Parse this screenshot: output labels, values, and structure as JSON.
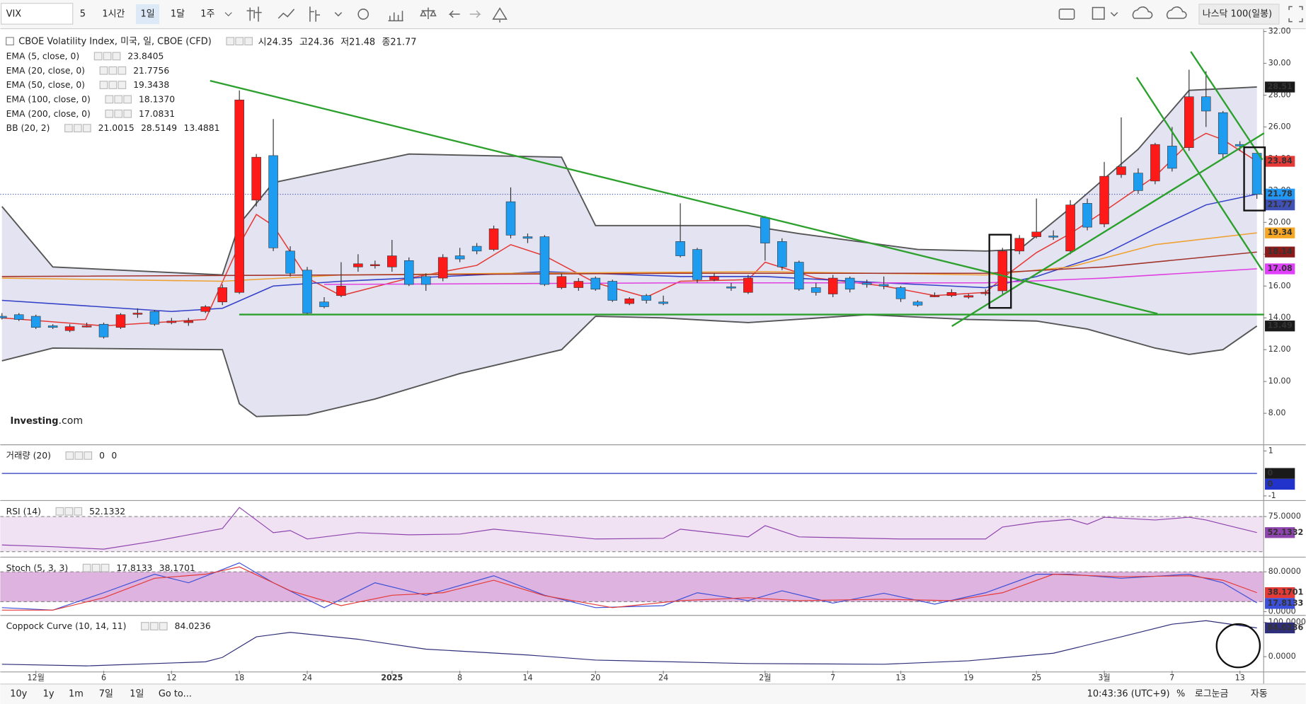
{
  "toolbar": {
    "symbol": "VIX",
    "intervals": [
      "5",
      "1시간",
      "1일",
      "1달",
      "1주"
    ],
    "selected_interval": 2,
    "index": "나스닥 100(일봉)"
  },
  "bottom_bar": {
    "ranges": [
      "10y",
      "1y",
      "1m",
      "7일",
      "1일",
      "Go to..."
    ],
    "time": "10:43:36 (UTC+9)",
    "options": [
      "%",
      "로그눈금",
      "자동"
    ]
  },
  "logo": {
    "brand": "Investing",
    "suffix": ".com"
  },
  "chart_data": [
    {
      "type": "candlestick",
      "title": "CBOE Volatility Index, 미국, 일, CBOE (CFD)",
      "ohlc_labels": [
        "시",
        "고",
        "저",
        "종"
      ],
      "categories": [
        null,
        null,
        "12월",
        null,
        null,
        null,
        "6",
        null,
        null,
        null,
        "12",
        null,
        null,
        null,
        "18",
        null,
        null,
        null,
        "24",
        null,
        null,
        null,
        null,
        "2025",
        null,
        null,
        null,
        "8",
        null,
        null,
        null,
        "14",
        null,
        null,
        null,
        "20",
        null,
        null,
        null,
        "24",
        null,
        null,
        null,
        null,
        null,
        "2월",
        null,
        null,
        null,
        "7",
        null,
        null,
        null,
        "13",
        null,
        null,
        null,
        "19",
        null,
        null,
        null,
        "25",
        null,
        null,
        null,
        "3월",
        null,
        null,
        null,
        "7",
        null,
        null,
        null,
        "13",
        null
      ],
      "open": [
        14.1,
        14.2,
        14.1,
        13.5,
        13.2,
        13.5,
        13.6,
        13.4,
        14.3,
        14.4,
        13.7,
        13.7,
        14.4,
        15.0,
        15.6,
        21.4,
        24.2,
        18.2,
        17.0,
        15.0,
        15.4,
        17.2,
        17.3,
        17.2,
        17.6,
        16.6,
        16.5,
        17.9,
        18.5,
        18.3,
        21.3,
        19.1,
        19.1,
        15.9,
        15.9,
        16.5,
        16.3,
        14.9,
        15.4,
        15.0,
        18.8,
        18.3,
        16.4,
        15.95,
        15.6,
        20.3,
        18.8,
        17.5,
        15.9,
        15.5,
        16.5,
        16.2,
        16.1,
        15.9,
        15.0,
        15.4,
        15.4,
        15.3,
        15.6,
        15.7,
        18.2,
        19.1,
        19.15,
        18.2,
        21.2,
        19.9,
        23.0,
        23.1,
        22.6,
        24.8,
        24.7,
        27.9,
        26.9,
        24.9,
        24.35
      ],
      "high": [
        14.3,
        14.3,
        14.2,
        13.6,
        13.6,
        13.7,
        13.7,
        14.3,
        14.6,
        14.5,
        14.0,
        14.0,
        14.8,
        16.1,
        28.3,
        24.3,
        26.5,
        18.5,
        17.2,
        15.3,
        17.5,
        18.0,
        17.6,
        18.9,
        17.8,
        16.8,
        18.0,
        18.4,
        18.7,
        19.8,
        22.2,
        19.3,
        19.2,
        16.8,
        16.5,
        16.6,
        16.4,
        15.3,
        15.5,
        15.4,
        21.2,
        18.4,
        16.8,
        16.2,
        16.7,
        20.4,
        19.0,
        17.6,
        16.2,
        16.7,
        16.6,
        16.4,
        16.6,
        16.0,
        15.1,
        15.6,
        15.8,
        15.5,
        15.8,
        18.4,
        19.2,
        21.5,
        19.5,
        21.4,
        21.5,
        23.8,
        26.6,
        23.4,
        25.0,
        26.0,
        29.6,
        29.5,
        27.0,
        25.1,
        24.36
      ],
      "low": [
        13.9,
        13.8,
        13.3,
        13.3,
        13.1,
        13.4,
        12.7,
        13.3,
        14.0,
        13.5,
        13.6,
        13.5,
        14.3,
        14.8,
        15.5,
        21.0,
        18.2,
        16.6,
        14.2,
        14.6,
        15.3,
        16.9,
        17.1,
        16.9,
        16.0,
        15.7,
        16.3,
        17.5,
        18.0,
        18.2,
        19.0,
        18.7,
        16.0,
        15.8,
        15.7,
        15.7,
        15.0,
        14.8,
        14.9,
        14.8,
        17.8,
        16.2,
        16.3,
        15.7,
        15.5,
        17.6,
        17.0,
        15.7,
        15.4,
        15.3,
        15.6,
        15.9,
        15.8,
        15.0,
        14.7,
        15.3,
        15.3,
        15.2,
        15.4,
        15.5,
        18.0,
        19.0,
        18.9,
        18.0,
        19.5,
        19.7,
        22.8,
        21.8,
        22.4,
        23.2,
        24.5,
        26.0,
        24.0,
        24.5,
        21.48
      ],
      "close": [
        14.0,
        13.9,
        13.4,
        13.4,
        13.45,
        13.5,
        12.8,
        14.2,
        14.3,
        13.6,
        13.8,
        13.8,
        14.7,
        15.9,
        27.7,
        24.1,
        18.4,
        16.8,
        14.3,
        14.7,
        16.0,
        17.4,
        17.35,
        17.9,
        16.1,
        16.1,
        17.8,
        17.7,
        18.2,
        19.6,
        19.2,
        19.0,
        16.1,
        16.6,
        16.3,
        15.8,
        15.1,
        15.2,
        15.1,
        14.9,
        17.9,
        16.4,
        16.6,
        15.9,
        16.5,
        18.7,
        17.2,
        15.8,
        15.6,
        16.5,
        15.8,
        16.1,
        16.0,
        15.2,
        14.8,
        15.4,
        15.6,
        15.4,
        15.6,
        18.2,
        19.0,
        19.4,
        19.1,
        21.1,
        19.7,
        22.9,
        23.5,
        22.0,
        24.9,
        23.4,
        27.9,
        27.0,
        24.3,
        24.8,
        21.77
      ],
      "up_color": "#ff1a1a",
      "down_color": "#1e9cf0",
      "ylim": [
        6.1,
        32.15
      ],
      "yticks": [
        {
          "value": 32,
          "label": "32.00"
        },
        {
          "value": 30,
          "label": "30.00"
        },
        {
          "value": 28,
          "label": "28.00"
        },
        {
          "value": 26,
          "label": "26.00"
        },
        {
          "value": 24,
          "label": "24.00"
        },
        {
          "value": 22,
          "label": "22.00"
        },
        {
          "value": 20,
          "label": "20.00"
        },
        {
          "value": 18,
          "label": "18.00"
        },
        {
          "value": 16,
          "label": "16.00"
        },
        {
          "value": 14,
          "label": "14.00"
        },
        {
          "value": 12,
          "label": "12.00"
        },
        {
          "value": 10,
          "label": "10.00"
        },
        {
          "value": 8,
          "label": "8.00"
        }
      ],
      "overlays": [
        {
          "name": "EMA (5, close, 0)",
          "color": "#e53935",
          "legend_value": 23.8405,
          "x": [
            0,
            6,
            12,
            14,
            15,
            16,
            18,
            20,
            24,
            28,
            30,
            32,
            35,
            38,
            40,
            44,
            45,
            48,
            52,
            55,
            58,
            59,
            61,
            63,
            65,
            68,
            70,
            71,
            72,
            74
          ],
          "values": [
            14.0,
            13.5,
            13.9,
            18.6,
            20.5,
            19.8,
            16.5,
            15.4,
            16.5,
            17.3,
            18.6,
            17.9,
            16.2,
            15.3,
            16.3,
            16.4,
            17.5,
            16.5,
            16.0,
            15.4,
            15.6,
            16.5,
            18.1,
            19.3,
            20.7,
            22.9,
            25.0,
            25.6,
            25.2,
            23.8405
          ]
        },
        {
          "name": "EMA (20, close, 0)",
          "color": "#3340c8",
          "legend_value": 21.7756,
          "x": [
            0,
            10,
            13,
            16,
            20,
            28,
            32,
            40,
            45,
            52,
            58,
            61,
            65,
            68,
            71,
            74
          ],
          "values": [
            15.1,
            14.4,
            14.6,
            16.0,
            16.3,
            16.7,
            16.9,
            16.6,
            16.6,
            16.2,
            15.9,
            16.6,
            18.0,
            19.6,
            21.1,
            21.7756
          ]
        },
        {
          "name": "EMA (50, close, 0)",
          "color": "#f0a030",
          "legend_value": 19.3438,
          "x": [
            0,
            13,
            20,
            30,
            45,
            58,
            63,
            68,
            74
          ],
          "values": [
            16.5,
            16.3,
            16.7,
            16.8,
            16.9,
            16.7,
            17.2,
            18.6,
            19.3438
          ]
        },
        {
          "name": "EMA (100, close, 0)",
          "color": "#a3322b",
          "legend_value": {
            "value": 18.137,
            "label": "18.1370"
          },
          "x": [
            0,
            20,
            40,
            58,
            65,
            74
          ],
          "values": [
            16.6,
            16.7,
            16.8,
            16.8,
            17.2,
            18.137
          ]
        },
        {
          "name": "EMA (200, close, 0)",
          "color": "#e040e0",
          "legend_value": 17.0831,
          "x": [
            19,
            40,
            58,
            65,
            74
          ],
          "values": [
            16.1,
            16.2,
            16.2,
            16.5,
            17.0831
          ]
        }
      ],
      "bands": {
        "name": "BB (20, 2)",
        "color": "#555555",
        "fill": "#e3e3f1",
        "basis_color": "#c62828",
        "basis": 21.0015,
        "upper": {
          "x": [
            0,
            3,
            13,
            14,
            16,
            24,
            33,
            35,
            39,
            44,
            47,
            54,
            58,
            60,
            63,
            67,
            70,
            74
          ],
          "values": [
            21.0,
            17.2,
            16.7,
            19.9,
            22.5,
            24.3,
            24.1,
            19.8,
            19.8,
            19.8,
            19.3,
            18.3,
            18.2,
            18.3,
            20.9,
            24.6,
            28.3,
            28.5149
          ]
        },
        "lower": {
          "x": [
            0,
            3,
            13,
            14,
            15,
            18,
            22,
            27,
            33,
            35,
            39,
            44,
            51,
            57,
            61,
            64,
            68,
            70,
            72,
            74
          ],
          "values": [
            11.3,
            12.1,
            12.0,
            8.6,
            7.8,
            7.9,
            8.9,
            10.5,
            12.0,
            14.1,
            14.0,
            13.7,
            14.2,
            13.9,
            13.8,
            13.3,
            12.1,
            11.7,
            12.0,
            13.4881
          ]
        }
      },
      "price_labels": [
        {
          "value": 28.51,
          "color": "#1a1a1a"
        },
        {
          "value": 23.84,
          "color": "#e53935"
        },
        {
          "value": 21.78,
          "color": "#2196f3"
        },
        {
          "value": 21.77,
          "color": "#3f51b5"
        },
        {
          "value": 19.34,
          "color": "#f5a623"
        },
        {
          "value": 18.14,
          "color": "#8b1a1a"
        },
        {
          "value": 17.08,
          "color": "#e040fb"
        },
        {
          "value": 13.49,
          "color": "#1a1a1a"
        }
      ]
    },
    {
      "type": "line",
      "title": "거래량 (20)",
      "ylim": [
        -1.15,
        1.22
      ],
      "yticks": [
        1,
        -1
      ],
      "series": [
        {
          "color": "#1a1a1a",
          "x": [
            0,
            74
          ],
          "values": [
            0,
            0
          ]
        },
        {
          "color": "#2233cc",
          "x": [
            0,
            74
          ],
          "values": [
            0,
            0
          ]
        }
      ]
    },
    {
      "type": "line",
      "title": "RSI (14)",
      "ylim": [
        19,
        96
      ],
      "yticks": [
        {
          "value": 75,
          "label": "75.0000"
        }
      ],
      "band": [
        25,
        75
      ],
      "band_color": "#f1e2f3",
      "series": [
        {
          "color": "#8e44ad",
          "x": [
            0,
            3,
            6,
            9,
            13,
            14,
            16,
            17,
            18,
            21,
            24,
            27,
            29,
            32,
            35,
            39,
            40,
            44,
            45,
            47,
            53,
            58,
            59,
            61,
            63,
            64,
            65,
            68,
            70,
            71,
            72,
            74
          ],
          "values": [
            34.5,
            32,
            28.6,
            40,
            58,
            88,
            52,
            55,
            43,
            52,
            49,
            50,
            57,
            50,
            43,
            44,
            57,
            46,
            62,
            46,
            43,
            43,
            60,
            67,
            71,
            64,
            74,
            70,
            74,
            70,
            64,
            52.1332
          ]
        }
      ]
    },
    {
      "type": "line",
      "title": "Stoch (5, 3, 3)",
      "ylim": [
        -5,
        107
      ],
      "yticks": [
        {
          "value": 80,
          "label": "80.0000"
        },
        {
          "value": 0,
          "label": "0.0000"
        }
      ],
      "band": [
        20,
        80
      ],
      "band_color": "#dfb3df",
      "series": [
        {
          "color": "#3b4fd8",
          "x": [
            0,
            3,
            6,
            9,
            11,
            14,
            16,
            19,
            22,
            25,
            29,
            32,
            35,
            39,
            41,
            44,
            46,
            49,
            52,
            55,
            58,
            61,
            63,
            66,
            70,
            72,
            74
          ],
          "values": [
            8,
            3,
            38,
            75,
            58,
            98,
            58,
            8,
            58,
            33,
            72,
            33,
            8,
            12,
            38,
            22,
            42,
            17,
            37,
            15,
            38,
            75,
            75,
            67,
            75,
            58,
            17.8133
          ]
        },
        {
          "color": "#e53935",
          "x": [
            0,
            3,
            6,
            9,
            12,
            14,
            17,
            20,
            23,
            26,
            29,
            32,
            36,
            40,
            44,
            47,
            52,
            56,
            59,
            62,
            66,
            70,
            72,
            74
          ],
          "values": [
            3,
            3,
            28,
            67,
            75,
            90,
            42,
            12,
            33,
            38,
            63,
            32,
            8,
            22,
            28,
            22,
            25,
            22,
            38,
            75,
            70,
            72,
            63,
            38.1701
          ]
        }
      ]
    },
    {
      "type": "line",
      "title": "Coppock Curve (10, 14, 11)",
      "ylim": [
        -41,
        117
      ],
      "yticks": [
        {
          "value": 100,
          "label": "100.0000"
        },
        {
          "value": 0,
          "label": "0.0000"
        }
      ],
      "series": [
        {
          "color": "#2e2e7a",
          "x": [
            0,
            5,
            12,
            13,
            15,
            17,
            21,
            25,
            31,
            35,
            44,
            52,
            57,
            62,
            66,
            69,
            71,
            74
          ],
          "values": [
            -22,
            -27,
            -15,
            -2,
            58,
            71,
            51,
            22,
            5,
            -10,
            -20,
            -22,
            -12,
            10,
            58,
            95,
            105,
            84.0236
          ]
        }
      ]
    }
  ]
}
